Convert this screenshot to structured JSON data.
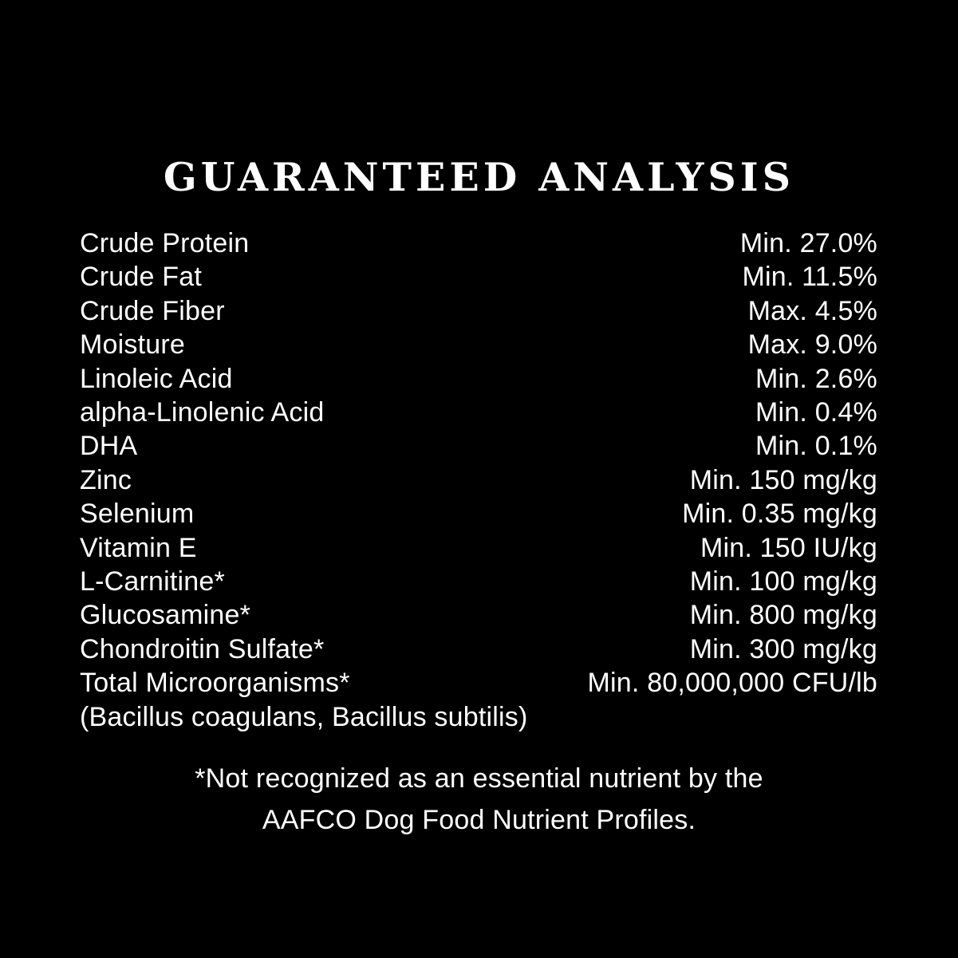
{
  "page": {
    "background_color": "#000000",
    "text_color": "#ffffff"
  },
  "title": "GUARANTEED ANALYSIS",
  "analysis": {
    "rows": [
      {
        "label": "Crude Protein",
        "value": "Min. 27.0%"
      },
      {
        "label": "Crude Fat",
        "value": "Min. 11.5%"
      },
      {
        "label": "Crude Fiber",
        "value": "Max. 4.5%"
      },
      {
        "label": "Moisture",
        "value": "Max. 9.0%"
      },
      {
        "label": "Linoleic Acid",
        "value": "Min. 2.6%"
      },
      {
        "label": "alpha-Linolenic Acid",
        "value": "Min. 0.4%"
      },
      {
        "label": "DHA",
        "value": "Min. 0.1%"
      },
      {
        "label": "Zinc",
        "value": "Min. 150 mg/kg"
      },
      {
        "label": "Selenium",
        "value": "Min. 0.35 mg/kg"
      },
      {
        "label": "Vitamin E",
        "value": "Min. 150 IU/kg"
      },
      {
        "label": "L-Carnitine*",
        "value": "Min. 100 mg/kg"
      },
      {
        "label": "Glucosamine*",
        "value": "Min. 800 mg/kg"
      },
      {
        "label": "Chondroitin Sulfate*",
        "value": "Min. 300 mg/kg"
      },
      {
        "label": "Total Microorganisms*",
        "value": "Min. 80,000,000 CFU/lb"
      }
    ],
    "species_note": "(Bacillus coagulans, Bacillus subtilis)"
  },
  "footnote": {
    "line1": "*Not recognized as an essential nutrient by the",
    "line2": "AAFCO Dog Food Nutrient Profiles."
  }
}
